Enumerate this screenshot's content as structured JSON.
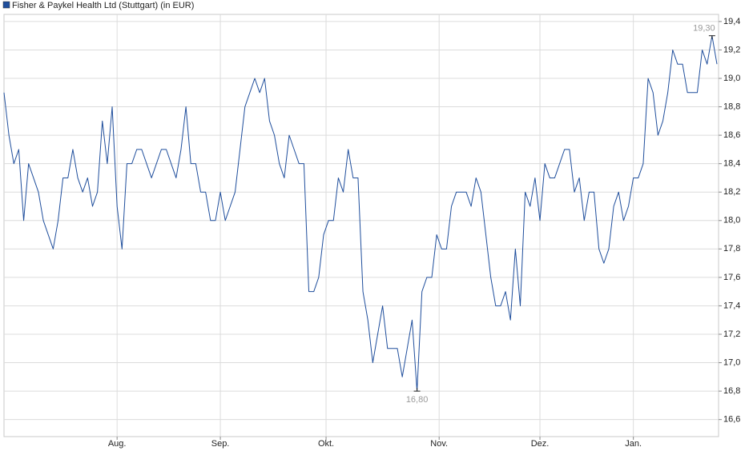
{
  "chart_data": {
    "type": "line",
    "series": [
      {
        "name": "Fisher & Paykel Health Ltd (Stuttgart) (in EUR)",
        "color": "#1f4e9c",
        "values": [
          18.9,
          18.6,
          18.4,
          18.5,
          18.0,
          18.4,
          18.3,
          18.2,
          18.0,
          17.9,
          17.8,
          18.0,
          18.3,
          18.3,
          18.5,
          18.3,
          18.2,
          18.3,
          18.1,
          18.2,
          18.7,
          18.4,
          18.8,
          18.1,
          17.8,
          18.4,
          18.4,
          18.5,
          18.5,
          18.4,
          18.3,
          18.4,
          18.5,
          18.5,
          18.4,
          18.3,
          18.5,
          18.8,
          18.4,
          18.4,
          18.2,
          18.2,
          18.0,
          18.0,
          18.2,
          18.0,
          18.1,
          18.2,
          18.5,
          18.8,
          18.9,
          19.0,
          18.9,
          19.0,
          18.7,
          18.6,
          18.4,
          18.3,
          18.6,
          18.5,
          18.4,
          18.4,
          17.5,
          17.5,
          17.6,
          17.9,
          18.0,
          18.0,
          18.3,
          18.2,
          18.5,
          18.3,
          18.3,
          17.5,
          17.3,
          17.0,
          17.2,
          17.4,
          17.1,
          17.1,
          17.1,
          16.9,
          17.1,
          17.3,
          16.8,
          17.5,
          17.6,
          17.6,
          17.9,
          17.8,
          17.8,
          18.1,
          18.2,
          18.2,
          18.2,
          18.1,
          18.3,
          18.2,
          17.9,
          17.6,
          17.4,
          17.4,
          17.5,
          17.3,
          17.8,
          17.4,
          18.2,
          18.1,
          18.3,
          18.0,
          18.4,
          18.3,
          18.3,
          18.4,
          18.5,
          18.5,
          18.2,
          18.3,
          18.0,
          18.2,
          18.2,
          17.8,
          17.7,
          17.8,
          18.1,
          18.2,
          18.0,
          18.1,
          18.3,
          18.3,
          18.4,
          19.0,
          18.9,
          18.6,
          18.7,
          18.9,
          19.2,
          19.1,
          19.1,
          18.9,
          18.9,
          18.9,
          19.2,
          19.1,
          19.3,
          19.1
        ]
      }
    ],
    "xlim": [
      0,
      145
    ],
    "xticks": [
      {
        "value": 23,
        "label": "Aug."
      },
      {
        "value": 44,
        "label": "Sep."
      },
      {
        "value": 65.5,
        "label": "Okt."
      },
      {
        "value": 88.5,
        "label": "Nov."
      },
      {
        "value": 109,
        "label": "Dez."
      },
      {
        "value": 128,
        "label": "Jan."
      }
    ],
    "ylim": [
      16.48,
      19.45
    ],
    "yticks": [
      {
        "value": 16.6,
        "label": "16,6"
      },
      {
        "value": 16.8,
        "label": "16,8"
      },
      {
        "value": 17.0,
        "label": "17,0"
      },
      {
        "value": 17.2,
        "label": "17,2"
      },
      {
        "value": 17.4,
        "label": "17,4"
      },
      {
        "value": 17.6,
        "label": "17,6"
      },
      {
        "value": 17.8,
        "label": "17,8"
      },
      {
        "value": 18.0,
        "label": "18,0"
      },
      {
        "value": 18.2,
        "label": "18,2"
      },
      {
        "value": 18.4,
        "label": "18,4"
      },
      {
        "value": 18.6,
        "label": "18,6"
      },
      {
        "value": 18.8,
        "label": "18,8"
      },
      {
        "value": 19.0,
        "label": "19,0"
      },
      {
        "value": 19.2,
        "label": "19,2"
      },
      {
        "value": 19.4,
        "label": "19,4"
      }
    ],
    "grid": true,
    "annotations": [
      {
        "label": "19,30",
        "x": 144,
        "y": 19.3,
        "position": "above"
      },
      {
        "label": "16,80",
        "x": 84,
        "y": 16.8,
        "position": "below"
      }
    ]
  }
}
